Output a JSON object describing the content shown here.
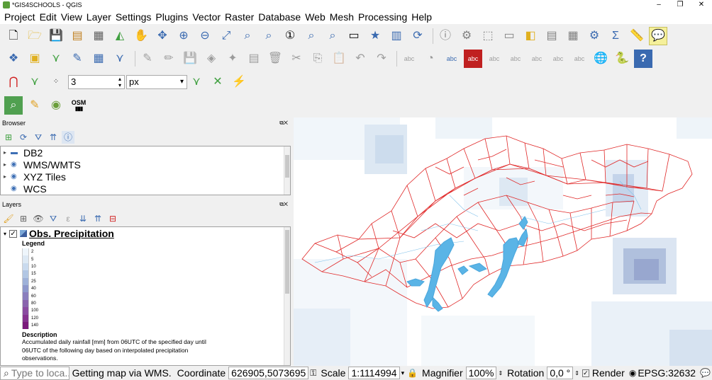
{
  "window": {
    "title": "*GIS4SCHOOLS - QGIS",
    "minimize": "–",
    "maximize": "❐",
    "close": "✕"
  },
  "menu": [
    "Project",
    "Edit",
    "View",
    "Layer",
    "Settings",
    "Plugins",
    "Vector",
    "Raster",
    "Database",
    "Web",
    "Mesh",
    "Processing",
    "Help"
  ],
  "snapping": {
    "tolerance": "3",
    "unit": "px"
  },
  "plugins": {
    "osm_label": "OSM"
  },
  "browser": {
    "title": "Browser",
    "items": [
      {
        "label": "DB2",
        "icon": "db2-icon"
      },
      {
        "label": "WMS/WMTS",
        "icon": "globe-icon"
      },
      {
        "label": "XYZ Tiles",
        "icon": "globe-icon"
      },
      {
        "label": "WCS",
        "icon": "globe-icon"
      }
    ]
  },
  "layers": {
    "title": "Layers",
    "layer_name": "Obs. Precipitation",
    "legend_title": "Legend",
    "legend": [
      {
        "value": "2",
        "color": "#eef5fb"
      },
      {
        "value": "5",
        "color": "#dde9f4"
      },
      {
        "value": "10",
        "color": "#c9daee"
      },
      {
        "value": "15",
        "color": "#b1c6e3"
      },
      {
        "value": "25",
        "color": "#9eb1d8"
      },
      {
        "value": "40",
        "color": "#8d98cb"
      },
      {
        "value": "60",
        "color": "#8a7fbd"
      },
      {
        "value": "80",
        "color": "#8a64ad"
      },
      {
        "value": "100",
        "color": "#8b4ba0"
      },
      {
        "value": "120",
        "color": "#86328f"
      },
      {
        "value": "140",
        "color": "#7b1a7c"
      }
    ],
    "description_title": "Description",
    "description": "Accumulated daily rainfall [mm] from 06UTC of the specified day until 06UTC of the following day based on interpolated precipitation observations."
  },
  "status": {
    "search_placeholder": "Type to loca...",
    "message": "Getting map via WMS.",
    "coordinate_label": "Coordinate",
    "coordinate": "626905,5073695",
    "scale_label": "Scale",
    "scale": "1:1114994",
    "magnifier_label": "Magnifier",
    "magnifier": "100%",
    "rotation_label": "Rotation",
    "rotation": "0,0 °",
    "render_label": "Render",
    "crs": "EPSG:32632"
  }
}
